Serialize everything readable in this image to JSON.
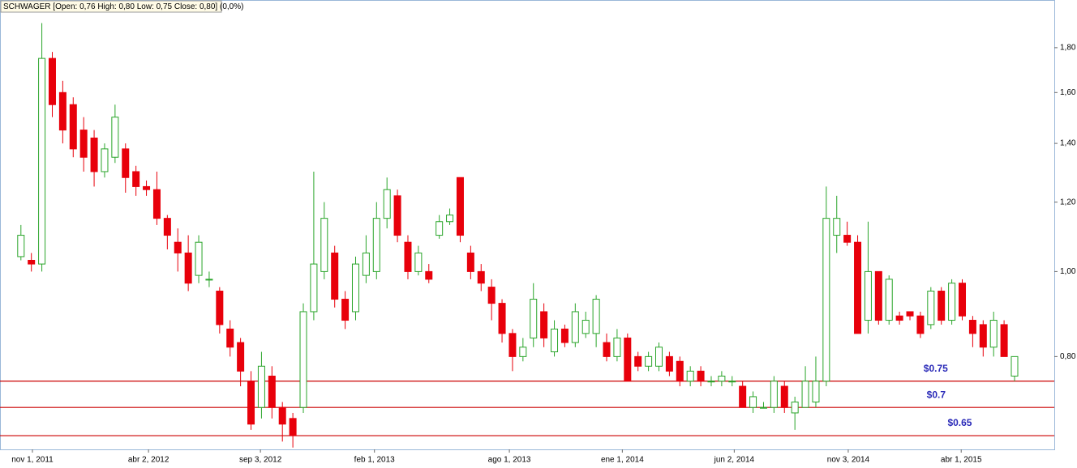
{
  "chart_data": {
    "type": "candlestick",
    "title": "SCHWAGER [Open: 0,76  High: 0,80  Low: 0,75  Close: 0,80] (0,0%)",
    "open": [
      1.04,
      1.03,
      1.02,
      1.75,
      1.6,
      1.55,
      1.45,
      1.42,
      1.3,
      1.35,
      1.38,
      1.3,
      1.25,
      1.24,
      1.15,
      1.08,
      1.05,
      0.99,
      0.98,
      0.95,
      0.86,
      0.83,
      0.75,
      0.7,
      0.76,
      0.7,
      0.68,
      0.7,
      0.9,
      1.0,
      1.05,
      0.93,
      0.9,
      0.99,
      1.0,
      1.15,
      1.22,
      1.08,
      1.0,
      1.0,
      1.1,
      1.14,
      1.28,
      1.05,
      1.0,
      0.96,
      0.92,
      0.85,
      0.8,
      0.84,
      0.9,
      0.81,
      0.86,
      0.83,
      0.85,
      0.85,
      0.83,
      0.8,
      0.84,
      0.8,
      0.78,
      0.78,
      0.8,
      0.79,
      0.75,
      0.77,
      0.75,
      0.75,
      0.75,
      0.74,
      0.7,
      0.7,
      0.7,
      0.74,
      0.69,
      0.7,
      0.71,
      0.75,
      1.1,
      1.1,
      1.08,
      0.88,
      1.0,
      0.88,
      0.89,
      0.9,
      0.89,
      0.87,
      0.95,
      0.88,
      0.97,
      0.88,
      0.87,
      0.82,
      0.87,
      0.76
    ],
    "high": [
      1.13,
      1.05,
      1.92,
      1.78,
      1.65,
      1.58,
      1.5,
      1.45,
      1.4,
      1.55,
      1.4,
      1.32,
      1.27,
      1.3,
      1.16,
      1.12,
      1.1,
      1.1,
      1.0,
      0.96,
      0.88,
      0.84,
      0.77,
      0.81,
      0.78,
      0.71,
      0.69,
      0.92,
      1.3,
      1.2,
      1.07,
      0.95,
      1.04,
      1.1,
      1.2,
      1.28,
      1.24,
      1.1,
      1.07,
      1.02,
      1.16,
      1.18,
      1.28,
      1.07,
      1.02,
      0.98,
      0.93,
      0.86,
      0.84,
      0.97,
      0.92,
      0.88,
      0.87,
      0.92,
      0.9,
      0.94,
      0.85,
      0.86,
      0.85,
      0.81,
      0.81,
      0.83,
      0.81,
      0.8,
      0.78,
      0.78,
      0.76,
      0.77,
      0.76,
      0.75,
      0.73,
      0.71,
      0.76,
      0.75,
      0.72,
      0.78,
      0.8,
      1.25,
      1.22,
      1.14,
      1.1,
      1.14,
      1.0,
      0.99,
      0.9,
      0.9,
      0.9,
      0.96,
      0.96,
      0.98,
      0.98,
      0.89,
      0.88,
      0.9,
      0.88,
      0.8
    ],
    "low": [
      1.03,
      1.0,
      1.0,
      1.5,
      1.4,
      1.35,
      1.3,
      1.25,
      1.28,
      1.33,
      1.23,
      1.22,
      1.22,
      1.13,
      1.06,
      1.0,
      0.95,
      0.97,
      0.96,
      0.85,
      0.8,
      0.74,
      0.66,
      0.68,
      0.68,
      0.64,
      0.63,
      0.69,
      0.88,
      0.98,
      0.91,
      0.86,
      0.88,
      0.97,
      0.98,
      1.12,
      1.08,
      0.98,
      0.99,
      0.97,
      1.09,
      1.13,
      1.08,
      0.98,
      0.95,
      0.88,
      0.83,
      0.77,
      0.79,
      0.82,
      0.82,
      0.8,
      0.82,
      0.82,
      0.84,
      0.82,
      0.79,
      0.79,
      0.75,
      0.77,
      0.77,
      0.77,
      0.76,
      0.74,
      0.74,
      0.74,
      0.74,
      0.74,
      0.74,
      0.7,
      0.69,
      0.7,
      0.69,
      0.69,
      0.66,
      0.7,
      0.7,
      0.74,
      1.05,
      1.07,
      0.85,
      0.85,
      0.87,
      0.87,
      0.87,
      0.88,
      0.84,
      0.86,
      0.87,
      0.87,
      0.88,
      0.82,
      0.8,
      0.8,
      0.8,
      0.75
    ],
    "close": [
      1.1,
      1.02,
      1.75,
      1.55,
      1.45,
      1.38,
      1.35,
      1.3,
      1.38,
      1.5,
      1.28,
      1.25,
      1.24,
      1.15,
      1.1,
      1.05,
      0.97,
      1.08,
      0.98,
      0.87,
      0.82,
      0.77,
      0.67,
      0.78,
      0.7,
      0.67,
      0.65,
      0.9,
      1.02,
      1.15,
      0.93,
      0.88,
      1.02,
      1.05,
      1.15,
      1.24,
      1.1,
      1.0,
      1.05,
      0.98,
      1.14,
      1.16,
      1.1,
      1.0,
      0.97,
      0.92,
      0.85,
      0.8,
      0.82,
      0.93,
      0.84,
      0.86,
      0.83,
      0.9,
      0.88,
      0.93,
      0.8,
      0.84,
      0.75,
      0.78,
      0.8,
      0.82,
      0.77,
      0.75,
      0.77,
      0.75,
      0.75,
      0.76,
      0.75,
      0.7,
      0.72,
      0.7,
      0.75,
      0.7,
      0.71,
      0.75,
      0.75,
      1.15,
      1.15,
      1.08,
      0.85,
      1.0,
      0.88,
      0.98,
      0.88,
      0.89,
      0.85,
      0.95,
      0.88,
      0.97,
      0.89,
      0.85,
      0.82,
      0.88,
      0.8,
      0.8
    ],
    "up_color": "#2aa52a",
    "down_color": "#e8000b",
    "log_scale": true,
    "ylim": [
      0.627,
      2.04
    ],
    "yticks": [
      {
        "value": 0.8,
        "label": "0,80"
      },
      {
        "value": 1.0,
        "label": "1,00"
      },
      {
        "value": 1.2,
        "label": "1,20"
      },
      {
        "value": 1.4,
        "label": "1,40"
      },
      {
        "value": 1.6,
        "label": "1,60"
      },
      {
        "value": 1.8,
        "label": "1,80"
      }
    ],
    "xlim": [
      -2,
      98.8
    ],
    "xticks": [
      {
        "value": 1.1,
        "label": "nov 1, 2011"
      },
      {
        "value": 12.2,
        "label": "abr 2, 2012"
      },
      {
        "value": 22.9,
        "label": "sep 3, 2012"
      },
      {
        "value": 33.8,
        "label": "feb 1, 2013"
      },
      {
        "value": 46.7,
        "label": "ago 1, 2013"
      },
      {
        "value": 57.5,
        "label": "ene 1, 2014"
      },
      {
        "value": 68.2,
        "label": "jun 2, 2014"
      },
      {
        "value": 79.1,
        "label": "nov 3, 2014"
      },
      {
        "value": 89.9,
        "label": "abr 1, 2015"
      }
    ],
    "hlines": [
      {
        "value": 0.75,
        "label": "$0.75",
        "label_at": 86.3
      },
      {
        "value": 0.7,
        "label": "$0.7",
        "label_at": 86.6
      },
      {
        "value": 0.65,
        "label": "$0.65",
        "label_at": 88.6
      }
    ],
    "hline_color": "#cc0000",
    "hline_label_color": "#2a2ab8"
  }
}
